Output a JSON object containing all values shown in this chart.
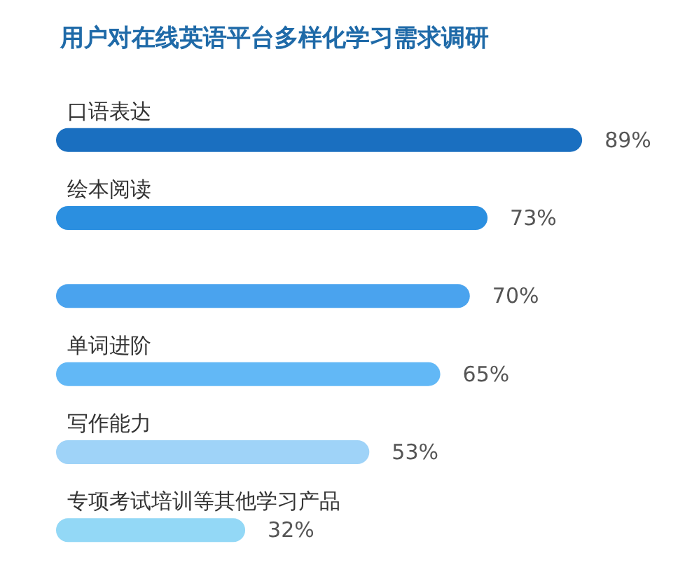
{
  "chart_data": {
    "type": "bar",
    "orientation": "horizontal",
    "title": "用户对在线英语平台多样化学习需求调研",
    "categories": [
      "口语表达",
      "绘本阅读",
      null,
      "单词进阶",
      "写作能力",
      "专项考试培训等其他学习产品"
    ],
    "values": [
      89,
      73,
      70,
      65,
      53,
      32
    ],
    "colors": [
      "#1a6fc0",
      "#2b8fe0",
      "#4aa3ee",
      "#62b8f6",
      "#9fd3f8",
      "#93d8f6"
    ],
    "value_labels": [
      "89%",
      "73%",
      "70%",
      "65%",
      "53%",
      "32%"
    ],
    "tick_labels": "y"
  }
}
